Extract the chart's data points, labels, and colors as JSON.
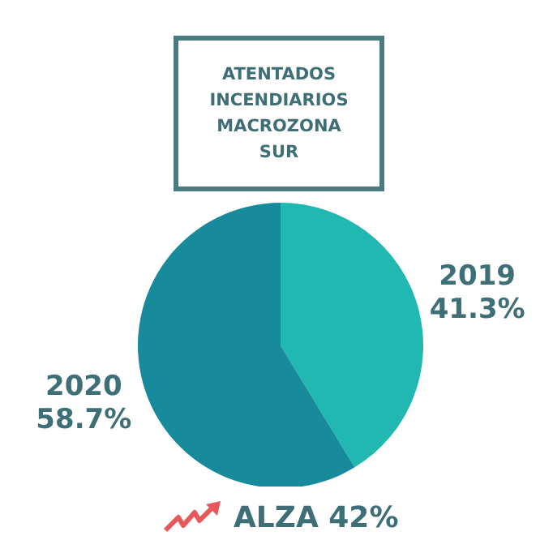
{
  "chart_data": {
    "type": "pie",
    "title": "ATENTADOS INCENDIARIOS MACROZONA SUR",
    "categories": [
      "2019",
      "2020"
    ],
    "values": [
      41.3,
      58.7
    ],
    "colors": [
      "#20b8b0",
      "#178b9c"
    ],
    "value_labels": [
      "41.3%",
      "58.7%"
    ],
    "annotations": [
      "ALZA 42%"
    ]
  }
}
